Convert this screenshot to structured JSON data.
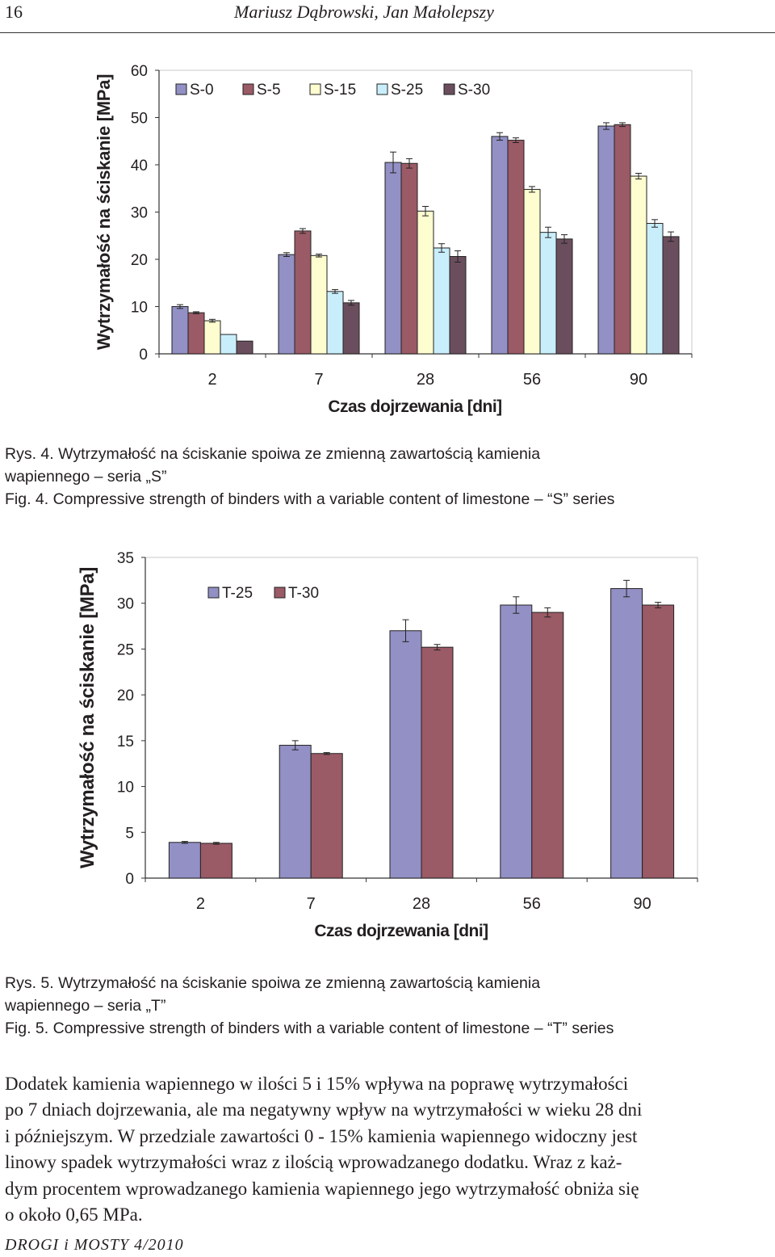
{
  "header": {
    "page_number": "16",
    "authors": "Mariusz Dąbrowski, Jan Małolepszy"
  },
  "figure4": {
    "caption_pl_line1": "Rys. 4. Wytrzymałość na ściskanie spoiwa ze zmienną zawartością kamienia",
    "caption_pl_line2": "wapiennego – seria „S”",
    "caption_en": "Fig. 4. Compressive strength of binders with a variable content of limestone – “S” series"
  },
  "figure5": {
    "caption_pl_line1": "Rys. 5. Wytrzymałość na ściskanie spoiwa ze zmienną zawartością kamienia",
    "caption_pl_line2": "wapiennego – seria „T”",
    "caption_en": "Fig. 5. Compressive strength of binders with a variable content of limestone – “T” series"
  },
  "chart_data": [
    {
      "type": "bar",
      "title": "",
      "xlabel": "Czas dojrzewania [dni]",
      "ylabel": "Wytrzymałość na ściskanie [MPa]",
      "categories": [
        "2",
        "7",
        "28",
        "56",
        "90"
      ],
      "ylim": [
        0,
        60
      ],
      "yticks": [
        "0",
        "10",
        "20",
        "30",
        "40",
        "50",
        "60"
      ],
      "legend_position": "top-left",
      "series": [
        {
          "name": "S-0",
          "color": "#9290c4",
          "values": [
            10.0,
            21.0,
            40.5,
            46.0,
            48.2
          ],
          "errors": [
            0.4,
            0.4,
            2.2,
            0.8,
            0.7
          ]
        },
        {
          "name": "S-5",
          "color": "#9a5a66",
          "values": [
            8.7,
            26.0,
            40.3,
            45.2,
            48.5
          ],
          "errors": [
            0.2,
            0.5,
            1.0,
            0.5,
            0.4
          ]
        },
        {
          "name": "S-15",
          "color": "#fdfdd0",
          "values": [
            7.0,
            20.8,
            30.2,
            34.8,
            37.6
          ],
          "errors": [
            0.3,
            0.3,
            1.0,
            0.6,
            0.6
          ]
        },
        {
          "name": "S-25",
          "color": "#c9eefb",
          "values": [
            4.1,
            13.2,
            22.4,
            25.7,
            27.6
          ],
          "errors": [
            0.0,
            0.4,
            0.9,
            1.1,
            0.8
          ]
        },
        {
          "name": "S-30",
          "color": "#6b4e5e",
          "values": [
            2.7,
            10.8,
            20.6,
            24.3,
            24.8
          ],
          "errors": [
            0.0,
            0.5,
            1.2,
            0.9,
            1.0
          ]
        }
      ]
    },
    {
      "type": "bar",
      "title": "",
      "xlabel": "Czas dojrzewania [dni]",
      "ylabel": "Wytrzymałość na ściskanie [MPa]",
      "categories": [
        "2",
        "7",
        "28",
        "56",
        "90"
      ],
      "ylim": [
        0,
        35
      ],
      "yticks": [
        "0",
        "5",
        "10",
        "15",
        "20",
        "25",
        "30",
        "35"
      ],
      "legend_position": "top-left",
      "series": [
        {
          "name": "T-25",
          "color": "#9290c4",
          "values": [
            3.9,
            14.5,
            27.0,
            29.8,
            31.6
          ],
          "errors": [
            0.1,
            0.5,
            1.2,
            0.9,
            0.9
          ]
        },
        {
          "name": "T-30",
          "color": "#9a5a66",
          "values": [
            3.8,
            13.6,
            25.2,
            29.0,
            29.8
          ],
          "errors": [
            0.1,
            0.1,
            0.3,
            0.5,
            0.3
          ]
        }
      ]
    }
  ],
  "body": {
    "line1": "Dodatek kamienia wapiennego w ilości 5 i 15% wpływa na poprawę wytrzymałości",
    "line2": "po 7 dniach dojrzewania, ale ma negatywny wpływ na wytrzymałości w wieku 28 dni",
    "line3": "i późniejszym. W przedziale zawartości 0 - 15% kamienia wapiennego widoczny jest",
    "line4": "linowy spadek wytrzymałości wraz z ilością wprowadzanego dodatku. Wraz z każ-",
    "line5": "dym procentem wprowadzanego kamienia wapiennego jego wytrzymałość obniża się",
    "line6": "o około 0,65 MPa."
  },
  "footer": {
    "journal": "DROGI i MOSTY 4/2010"
  }
}
